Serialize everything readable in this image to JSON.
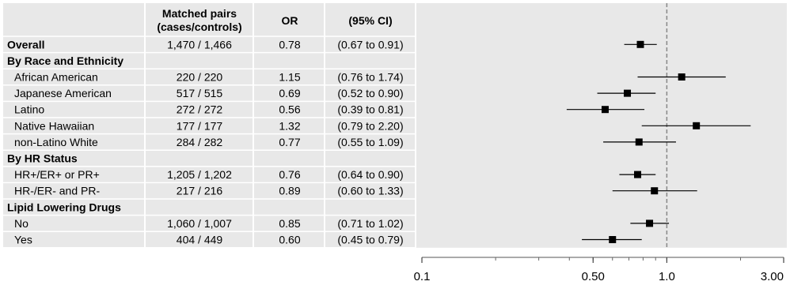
{
  "headers": {
    "pairs": "Matched pairs (cases/controls)",
    "pairs_line1": "Matched pairs",
    "pairs_line2": "(cases/controls)",
    "or": "OR",
    "ci": "(95% CI)"
  },
  "rows": [
    {
      "label": "Overall",
      "is_group": true,
      "indent": false,
      "pairs": "1,470 / 1,466",
      "or_text": "0.78",
      "ci_text": "(0.67 to 0.91)"
    },
    {
      "label": "By Race and Ethnicity",
      "is_group": true,
      "indent": false,
      "pairs": "",
      "or_text": "",
      "ci_text": ""
    },
    {
      "label": "African American",
      "is_group": false,
      "indent": true,
      "pairs": "220 / 220",
      "or_text": "1.15",
      "ci_text": "(0.76 to 1.74)"
    },
    {
      "label": "Japanese American",
      "is_group": false,
      "indent": true,
      "pairs": "517 / 515",
      "or_text": "0.69",
      "ci_text": "(0.52 to 0.90)"
    },
    {
      "label": "Latino",
      "is_group": false,
      "indent": true,
      "pairs": "272 / 272",
      "or_text": "0.56",
      "ci_text": "(0.39 to 0.81)"
    },
    {
      "label": "Native Hawaiian",
      "is_group": false,
      "indent": true,
      "pairs": "177 / 177",
      "or_text": "1.32",
      "ci_text": "(0.79 to 2.20)"
    },
    {
      "label": "non-Latino White",
      "is_group": false,
      "indent": true,
      "pairs": "284 / 282",
      "or_text": "0.77",
      "ci_text": "(0.55 to 1.09)"
    },
    {
      "label": "By HR Status",
      "is_group": true,
      "indent": false,
      "pairs": "",
      "or_text": "",
      "ci_text": ""
    },
    {
      "label": "HR+/ER+ or PR+",
      "is_group": false,
      "indent": true,
      "pairs": "1,205 / 1,202",
      "or_text": "0.76",
      "ci_text": "(0.64 to 0.90)"
    },
    {
      "label": "HR-/ER- and PR-",
      "is_group": false,
      "indent": true,
      "pairs": "217 / 216",
      "or_text": "0.89",
      "ci_text": "(0.60 to 1.33)"
    },
    {
      "label": "Lipid Lowering Drugs",
      "is_group": true,
      "indent": false,
      "pairs": "",
      "or_text": "",
      "ci_text": ""
    },
    {
      "label": "No",
      "is_group": false,
      "indent": true,
      "pairs": "1,060 / 1,007",
      "or_text": "0.85",
      "ci_text": "(0.71 to 1.02)"
    },
    {
      "label": "Yes",
      "is_group": false,
      "indent": true,
      "pairs": "404 / 449",
      "or_text": "0.60",
      "ci_text": "(0.45 to 0.79)"
    }
  ],
  "chart_data": {
    "type": "forest",
    "x_scale": "log",
    "xlim": [
      0.1,
      3.0
    ],
    "reference_line": 1.0,
    "x_ticks": [
      0.1,
      0.5,
      1.0,
      3.0
    ],
    "x_tick_labels": [
      "0.1",
      "0.50",
      "1.0",
      "3.00"
    ],
    "points": [
      {
        "label": "Overall",
        "or": 0.78,
        "lo": 0.67,
        "hi": 0.91
      },
      {
        "label": "African American",
        "or": 1.15,
        "lo": 0.76,
        "hi": 1.74
      },
      {
        "label": "Japanese American",
        "or": 0.69,
        "lo": 0.52,
        "hi": 0.9
      },
      {
        "label": "Latino",
        "or": 0.56,
        "lo": 0.39,
        "hi": 0.81
      },
      {
        "label": "Native Hawaiian",
        "or": 1.32,
        "lo": 0.79,
        "hi": 2.2
      },
      {
        "label": "non-Latino White",
        "or": 0.77,
        "lo": 0.55,
        "hi": 1.09
      },
      {
        "label": "HR+/ER+ or PR+",
        "or": 0.76,
        "lo": 0.64,
        "hi": 0.9
      },
      {
        "label": "HR-/ER- and PR-",
        "or": 0.89,
        "lo": 0.6,
        "hi": 1.33
      },
      {
        "label": "No",
        "or": 0.85,
        "lo": 0.71,
        "hi": 1.02
      },
      {
        "label": "Yes",
        "or": 0.6,
        "lo": 0.45,
        "hi": 0.79
      }
    ],
    "colors": {
      "table_bg": "#e8e8e8",
      "grid_lines": "#ffffff",
      "marker": "#000000",
      "reference_line": "#888888"
    }
  }
}
